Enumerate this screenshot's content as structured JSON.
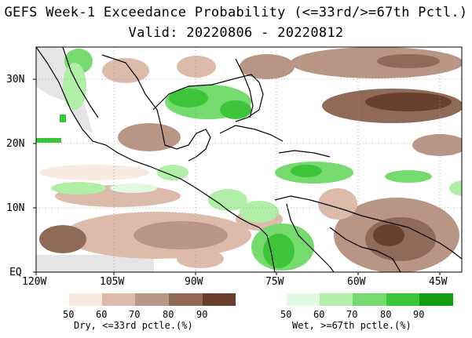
{
  "title": {
    "line1": "GEFS Week-1 Exceedance Probability (<=33rd/>=67th Pctl.)",
    "line2": "Valid: 20220806 - 20220812"
  },
  "axes": {
    "lat_labels": [
      "30N",
      "20N",
      "10N",
      "EQ"
    ],
    "lon_labels": [
      "120W",
      "105W",
      "90W",
      "75W",
      "60W",
      "45W"
    ],
    "lon_range": [
      -120,
      -42
    ],
    "lat_range": [
      -1,
      35
    ]
  },
  "legend": {
    "dry": {
      "ticks": [
        "50",
        "60",
        "70",
        "80",
        "90"
      ],
      "title": "Dry, <=33rd pctle.(%)",
      "colors": [
        "#f7eae0",
        "#ddbbaa",
        "#b99585",
        "#8f6a58",
        "#663f2f"
      ]
    },
    "wet": {
      "ticks": [
        "50",
        "60",
        "70",
        "80",
        "90"
      ],
      "title": "Wet, >=67th pctle.(%)",
      "colors": [
        "#e2f8e0",
        "#b1eea8",
        "#75db6f",
        "#3dc53a",
        "#119e12"
      ]
    }
  },
  "map_colors": {
    "missing": "#e5e5e5",
    "coast": "#000000",
    "grid": "#9a9a9a"
  }
}
